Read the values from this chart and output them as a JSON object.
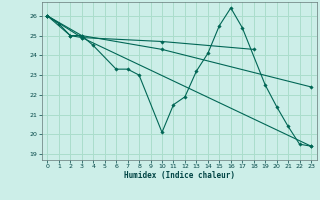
{
  "xlabel": "Humidex (Indice chaleur)",
  "ylabel": "",
  "background_color": "#cceee8",
  "grid_color": "#aaddcc",
  "line_color": "#006655",
  "xlim": [
    -0.5,
    23.5
  ],
  "ylim": [
    18.7,
    26.7
  ],
  "yticks": [
    19,
    20,
    21,
    22,
    23,
    24,
    25,
    26
  ],
  "xticks": [
    0,
    1,
    2,
    3,
    4,
    5,
    6,
    7,
    8,
    9,
    10,
    11,
    12,
    13,
    14,
    15,
    16,
    17,
    18,
    19,
    20,
    21,
    22,
    23
  ],
  "series": [
    {
      "x": [
        0,
        1,
        2,
        3,
        4,
        6,
        7,
        8,
        10,
        11,
        12,
        13,
        14,
        15,
        16,
        17,
        19,
        20,
        21,
        22,
        23
      ],
      "y": [
        26,
        25.6,
        25,
        25,
        24.5,
        23.3,
        23.3,
        23.0,
        20.1,
        21.5,
        21.9,
        23.2,
        24.1,
        25.5,
        26.4,
        25.4,
        22.5,
        21.4,
        20.4,
        19.5,
        19.4
      ]
    },
    {
      "x": [
        0,
        2,
        3,
        10,
        18
      ],
      "y": [
        26,
        25,
        24.9,
        24.7,
        24.3
      ]
    },
    {
      "x": [
        0,
        3,
        10,
        23
      ],
      "y": [
        26,
        25,
        24.3,
        22.4
      ]
    },
    {
      "x": [
        0,
        3,
        23
      ],
      "y": [
        26,
        24.9,
        19.4
      ]
    }
  ]
}
